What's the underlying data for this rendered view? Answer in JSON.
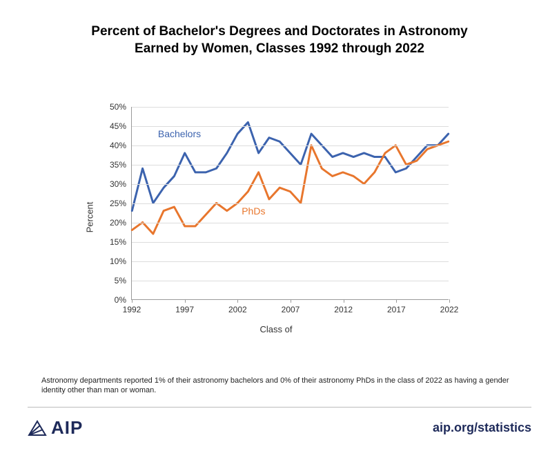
{
  "title_line1": "Percent of Bachelor's Degrees and Doctorates in Astronomy",
  "title_line2": "Earned by Women, Classes 1992 through 2022",
  "title_fontsize": 19,
  "chart": {
    "type": "line",
    "background_color": "#ffffff",
    "grid_color": "#dcdcdc",
    "axis_color": "#999999",
    "x_axis_title": "Class of",
    "y_axis_title": "Percent",
    "axis_title_fontsize": 13,
    "tick_fontsize": 12,
    "xlim": [
      1992,
      2022
    ],
    "x_ticks": [
      1992,
      1997,
      2002,
      2007,
      2012,
      2017,
      2022
    ],
    "ylim": [
      0,
      50
    ],
    "y_ticks": [
      0,
      5,
      10,
      15,
      20,
      25,
      30,
      35,
      40,
      45,
      50
    ],
    "y_tick_suffix": "%",
    "line_width": 3,
    "series": [
      {
        "name": "Bachelors",
        "label": "Bachelors",
        "label_pos": {
          "x": 1996.5,
          "y": 43
        },
        "color": "#3c63ae",
        "years": [
          1992,
          1993,
          1994,
          1995,
          1996,
          1997,
          1998,
          1999,
          2000,
          2001,
          2002,
          2003,
          2004,
          2005,
          2006,
          2007,
          2008,
          2009,
          2010,
          2011,
          2012,
          2013,
          2014,
          2015,
          2016,
          2017,
          2018,
          2019,
          2020,
          2021,
          2022
        ],
        "values": [
          23,
          34,
          25,
          29,
          32,
          38,
          33,
          33,
          34,
          38,
          43,
          46,
          38,
          42,
          41,
          38,
          35,
          43,
          40,
          37,
          38,
          37,
          38,
          37,
          37,
          33,
          34,
          37,
          40,
          40,
          43
        ]
      },
      {
        "name": "PhDs",
        "label": "PhDs",
        "label_pos": {
          "x": 2003.5,
          "y": 23
        },
        "color": "#e8762d",
        "years": [
          1992,
          1993,
          1994,
          1995,
          1996,
          1997,
          1998,
          1999,
          2000,
          2001,
          2002,
          2003,
          2004,
          2005,
          2006,
          2007,
          2008,
          2009,
          2010,
          2011,
          2012,
          2013,
          2014,
          2015,
          2016,
          2017,
          2018,
          2019,
          2020,
          2021,
          2022
        ],
        "values": [
          18,
          20,
          17,
          23,
          24,
          19,
          19,
          22,
          25,
          23,
          25,
          28,
          33,
          26,
          29,
          28,
          25,
          40,
          34,
          32,
          33,
          32,
          30,
          33,
          38,
          40,
          35,
          36,
          39,
          40,
          41
        ]
      }
    ]
  },
  "footnote": "Astronomy departments reported 1% of their astronomy bachelors and 0% of their astronomy PhDs in the class of 2022 as having a gender identity other than man or woman.",
  "footnote_fontsize": 11,
  "footer": {
    "logo_text": "AIP",
    "link_text": "aip.org/statistics",
    "brand_color": "#1e2a5a"
  }
}
